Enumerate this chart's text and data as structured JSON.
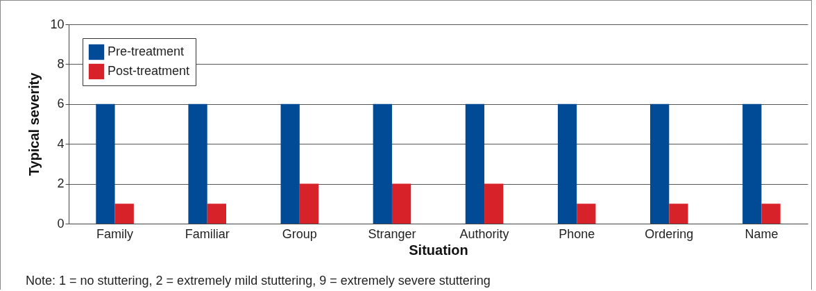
{
  "chart_data": {
    "type": "bar",
    "xlabel": "Situation",
    "ylabel": "Typical severity",
    "categories": [
      "Family",
      "Familiar",
      "Group",
      "Stranger",
      "Authority",
      "Phone",
      "Ordering",
      "Name"
    ],
    "series": [
      {
        "name": "Pre-treatment",
        "color": "#004a96",
        "values": [
          6,
          6,
          6,
          6,
          6,
          6,
          6,
          6
        ]
      },
      {
        "name": "Post-treatment",
        "color": "#d7222a",
        "values": [
          1,
          1,
          2,
          2,
          2,
          1,
          1,
          1
        ]
      }
    ],
    "ylim": [
      0,
      10
    ],
    "yticks": [
      0,
      2,
      4,
      6,
      8,
      10
    ],
    "grid": "y",
    "legend": "top left",
    "annotations": [
      "Note: 1 = no stuttering, 2 = extremely mild stuttering, 9 = extremely severe stuttering"
    ]
  }
}
